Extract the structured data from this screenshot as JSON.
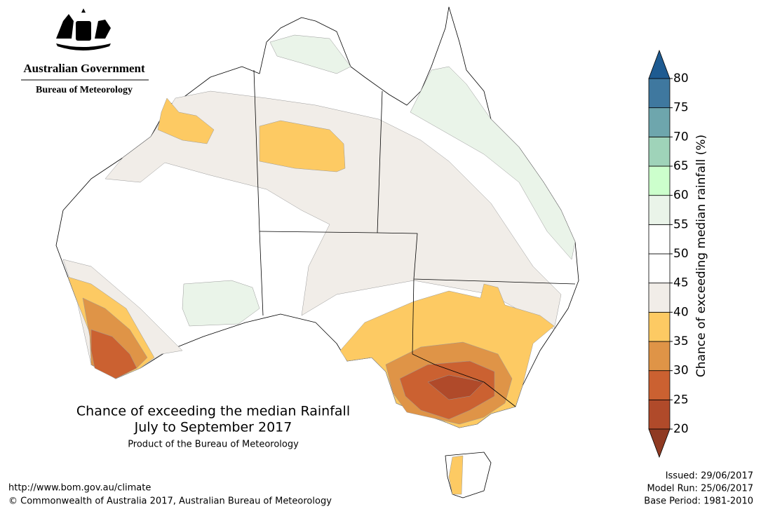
{
  "header": {
    "government": "Australian Government",
    "bureau": "Bureau of Meteorology"
  },
  "map": {
    "title_line1": "Chance of exceeding the median Rainfall",
    "title_line2": "July to September 2017",
    "product": "Product of the Bureau of Meteorology"
  },
  "colorbar": {
    "label": "Chance of exceeding median rainfall (%)",
    "ticks": [
      20,
      25,
      30,
      35,
      40,
      45,
      50,
      55,
      60,
      65,
      70,
      75,
      80
    ],
    "colors": [
      "#b04a2a",
      "#cb6131",
      "#df9447",
      "#fdca63",
      "#f1ede8",
      "#ffffff",
      "#ffffff",
      "#eaf4e9",
      "#ccffcc",
      "#9fd3b9",
      "#6ea6ad",
      "#3f789f"
    ],
    "under_color": "#8f3a22",
    "over_color": "#1e5b91"
  },
  "footer": {
    "url": "http://www.bom.gov.au/climate",
    "copyright": "© Commonwealth of Australia 2017, Australian Bureau of Meteorology",
    "issued": "Issued: 29/06/2017",
    "model_run": "Model Run: 25/06/2017",
    "base_period": "Base Period: 1981-2010"
  }
}
